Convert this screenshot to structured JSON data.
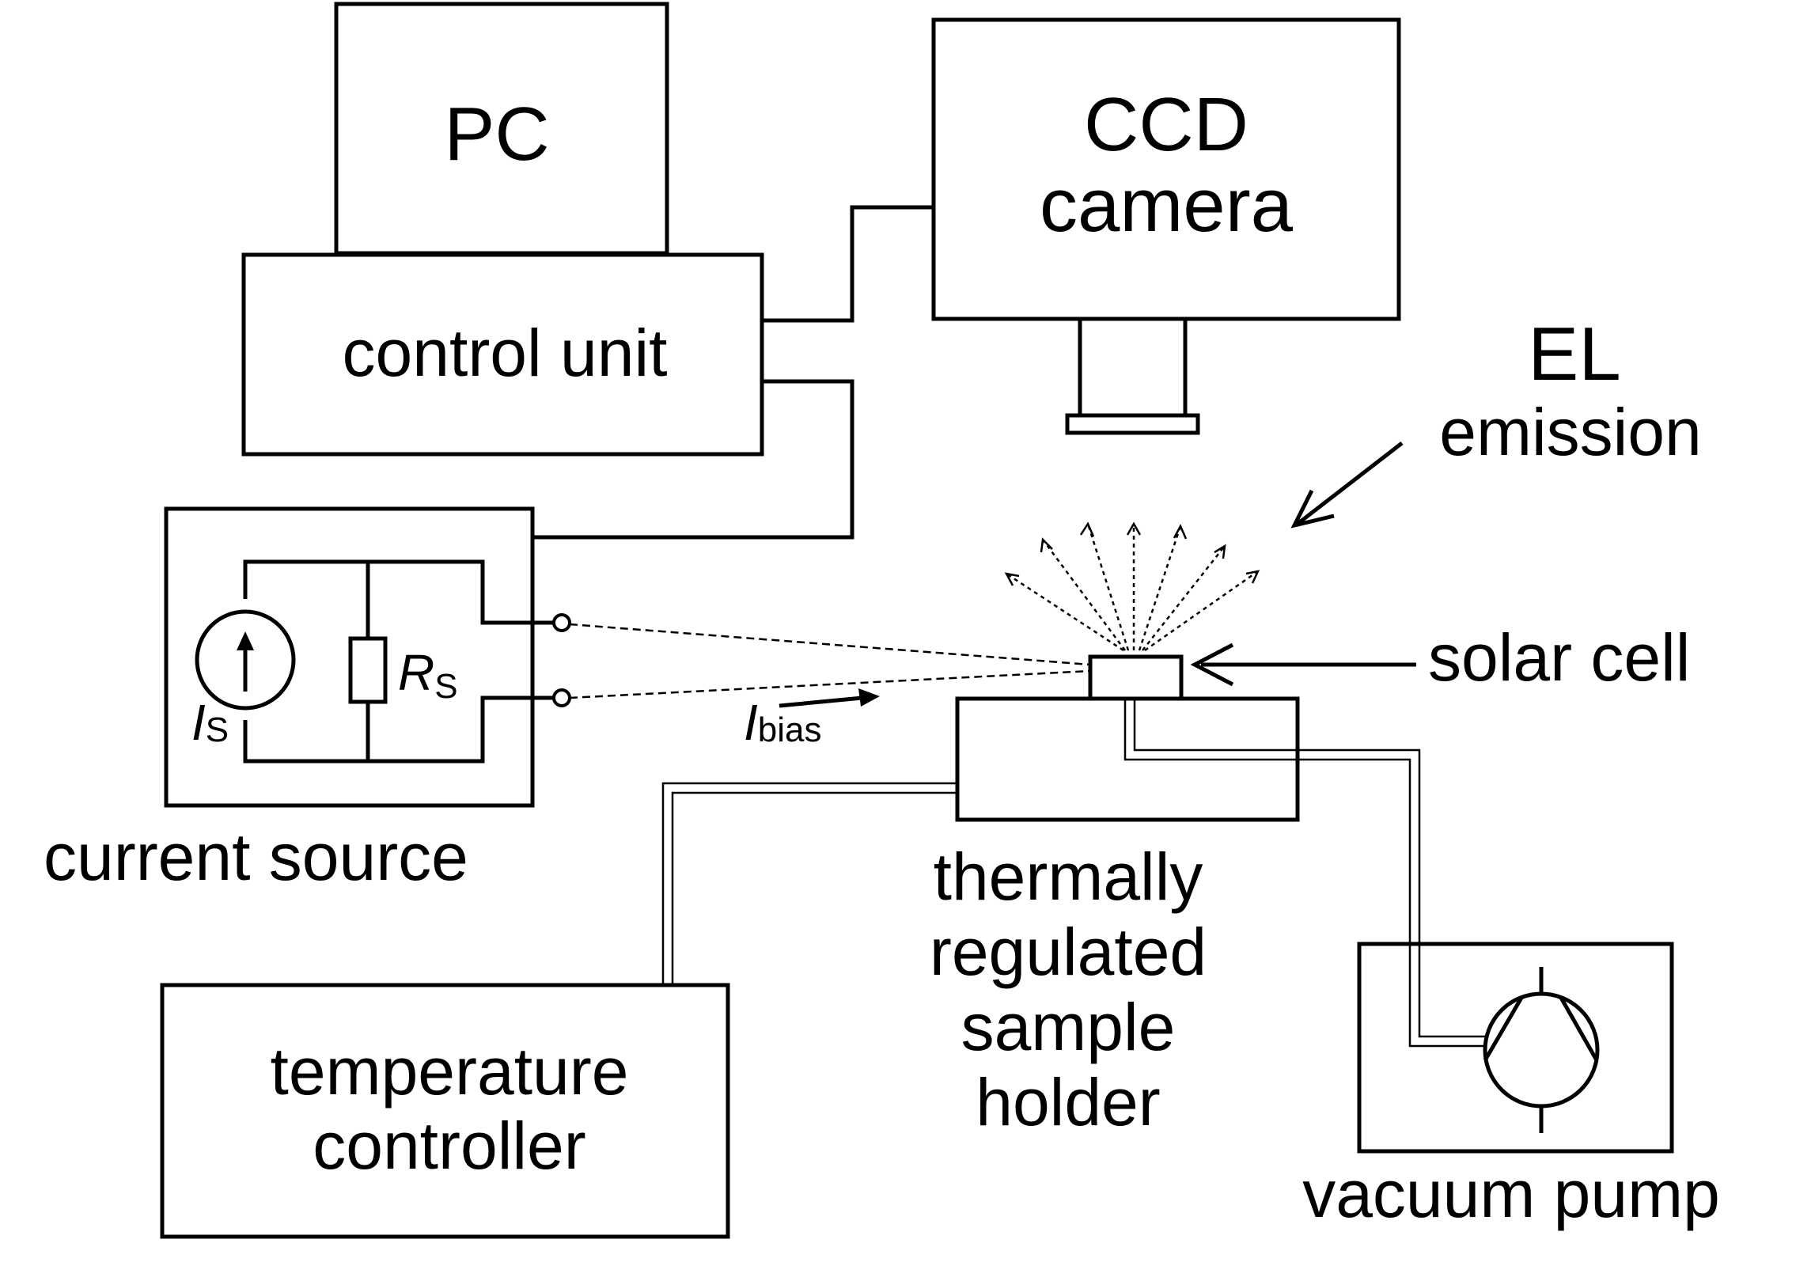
{
  "labels": {
    "pc": "PC",
    "ccd_line1": "CCD",
    "ccd_line2": "camera",
    "control_unit": "control unit",
    "el_line1": "EL",
    "el_line2": "emission",
    "solar_cell": "solar cell",
    "current_source": "current source",
    "is_symbol": "I",
    "is_subscript": "S",
    "rs_symbol": "R",
    "rs_subscript": "S",
    "ibias_symbol": "I",
    "ibias_subscript": "bias",
    "holder_line1": "thermally",
    "holder_line2": "regulated",
    "holder_line3": "sample",
    "holder_line4": "holder",
    "temp_line1": "temperature",
    "temp_line2": "controller",
    "vacuum_pump": "vacuum pump"
  }
}
